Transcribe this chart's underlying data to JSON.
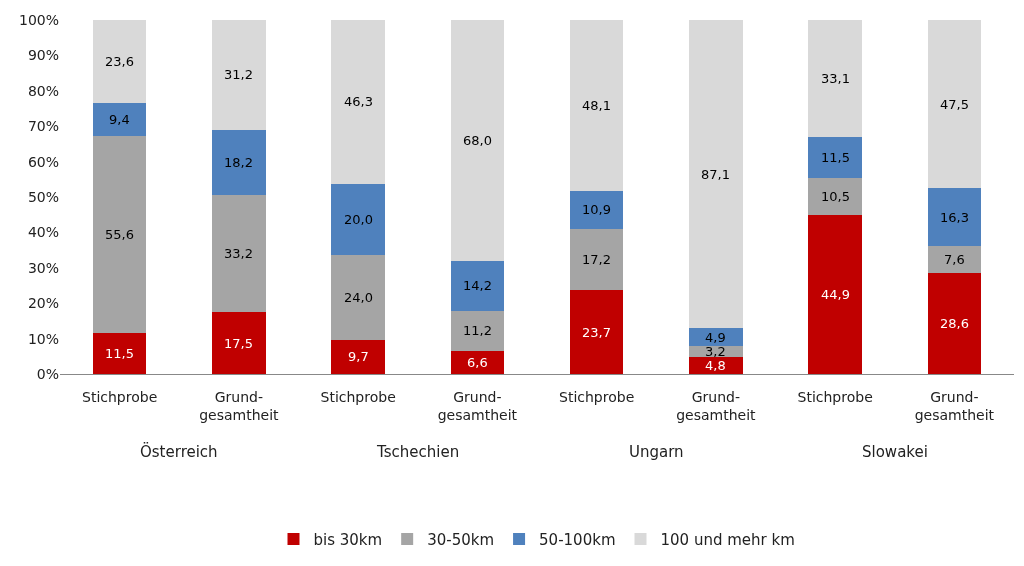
{
  "chart_data": {
    "type": "bar",
    "stacked": true,
    "legend": "bottom",
    "categories": [
      "Stichprobe",
      "Grund-\ngesamtheit",
      "Stichprobe",
      "Grund-\ngesamtheit",
      "Stichprobe",
      "Grund-\ngesamtheit",
      "Stichprobe",
      "Grund-\ngesamtheit"
    ],
    "annotations": [
      "Österreich",
      "Tschechien",
      "Ungarn",
      "Slowakei"
    ],
    "ylim": [
      0,
      100
    ],
    "yticks": [
      {
        "value": 0,
        "label": "0%"
      },
      {
        "value": 10,
        "label": "10%"
      },
      {
        "value": 20,
        "label": "20%"
      },
      {
        "value": 30,
        "label": "30%"
      },
      {
        "value": 40,
        "label": "40%"
      },
      {
        "value": 50,
        "label": "50%"
      },
      {
        "value": 60,
        "label": "60%"
      },
      {
        "value": 70,
        "label": "70%"
      },
      {
        "value": 80,
        "label": "80%"
      },
      {
        "value": 90,
        "label": "90%"
      },
      {
        "value": 100,
        "label": "100%"
      }
    ],
    "series": [
      {
        "name": "bis 30km",
        "color": "#c00000",
        "values": [
          11.5,
          17.5,
          9.7,
          6.6,
          23.7,
          4.8,
          44.9,
          28.6
        ],
        "value_labels": [
          "11,5",
          "17,5",
          "9,7",
          "6,6",
          "23,7",
          "4,8",
          "44,9",
          "28,6"
        ]
      },
      {
        "name": "30-50km",
        "color": "#a5a5a5",
        "values": [
          55.6,
          33.2,
          24.0,
          11.2,
          17.2,
          3.2,
          10.5,
          7.6
        ],
        "value_labels": [
          "55,6",
          "33,2",
          "24,0",
          "11,2",
          "17,2",
          "3,2",
          "10,5",
          "7,6"
        ]
      },
      {
        "name": "50-100km",
        "color": "#4f81bd",
        "values": [
          9.4,
          18.2,
          20.0,
          14.2,
          10.9,
          4.9,
          11.5,
          16.3
        ],
        "value_labels": [
          "9,4",
          "18,2",
          "20,0",
          "14,2",
          "10,9",
          "4,9",
          "11,5",
          "16,3"
        ]
      },
      {
        "name": "100 und mehr km",
        "color": "#d9d9d9",
        "values": [
          23.6,
          31.2,
          46.3,
          68.0,
          48.1,
          87.1,
          33.1,
          47.5
        ],
        "value_labels": [
          "23,6",
          "31,2",
          "46,3",
          "68,0",
          "48,1",
          "87,1",
          "33,1",
          "47,5"
        ]
      }
    ]
  }
}
